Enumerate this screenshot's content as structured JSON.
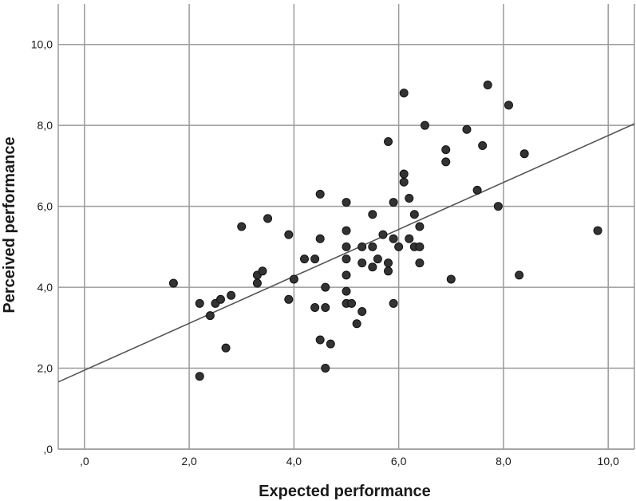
{
  "chart_data": {
    "type": "scatter",
    "title": "",
    "xlabel": "Expected performance",
    "ylabel": "Perceived performance",
    "xlim": [
      -0.5,
      10.5
    ],
    "ylim": [
      0,
      11
    ],
    "x_ticks": [
      ",0",
      "2,0",
      "4,0",
      "6,0",
      "8,0",
      "10,0"
    ],
    "y_ticks": [
      ",0",
      "2,0",
      "4,0",
      "6,0",
      "8,0",
      "10,0"
    ],
    "grid": true,
    "fit_line": {
      "intercept": 1.95,
      "slope": 0.58
    },
    "colors": {
      "marker": "#333333",
      "marker_edge": "#111111",
      "line": "#555555",
      "grid": "#9a9a9a"
    },
    "series": [
      {
        "points": [
          [
            1.7,
            4.1
          ],
          [
            2.2,
            3.6
          ],
          [
            2.2,
            1.8
          ],
          [
            2.4,
            3.3
          ],
          [
            2.5,
            3.6
          ],
          [
            2.6,
            3.7
          ],
          [
            2.7,
            2.5
          ],
          [
            2.8,
            3.8
          ],
          [
            3.0,
            5.5
          ],
          [
            3.3,
            4.3
          ],
          [
            3.3,
            4.1
          ],
          [
            3.4,
            4.4
          ],
          [
            3.5,
            5.7
          ],
          [
            3.9,
            5.3
          ],
          [
            3.9,
            3.7
          ],
          [
            4.0,
            4.2
          ],
          [
            4.2,
            4.7
          ],
          [
            4.4,
            4.7
          ],
          [
            4.4,
            3.5
          ],
          [
            4.5,
            6.3
          ],
          [
            4.5,
            5.2
          ],
          [
            4.5,
            2.7
          ],
          [
            4.6,
            4.0
          ],
          [
            4.6,
            3.5
          ],
          [
            4.6,
            2.0
          ],
          [
            4.7,
            2.6
          ],
          [
            5.0,
            6.1
          ],
          [
            5.0,
            5.4
          ],
          [
            5.0,
            5.0
          ],
          [
            5.0,
            4.7
          ],
          [
            5.0,
            4.3
          ],
          [
            5.0,
            3.9
          ],
          [
            5.0,
            3.6
          ],
          [
            5.1,
            3.6
          ],
          [
            5.2,
            3.1
          ],
          [
            5.3,
            5.0
          ],
          [
            5.3,
            4.6
          ],
          [
            5.3,
            3.4
          ],
          [
            5.5,
            5.8
          ],
          [
            5.5,
            5.0
          ],
          [
            5.5,
            4.5
          ],
          [
            5.6,
            4.7
          ],
          [
            5.7,
            5.3
          ],
          [
            5.8,
            7.6
          ],
          [
            5.8,
            4.6
          ],
          [
            5.8,
            4.4
          ],
          [
            5.9,
            6.1
          ],
          [
            5.9,
            5.2
          ],
          [
            5.9,
            3.6
          ],
          [
            6.0,
            5.0
          ],
          [
            6.1,
            8.8
          ],
          [
            6.1,
            6.8
          ],
          [
            6.1,
            6.6
          ],
          [
            6.2,
            6.2
          ],
          [
            6.2,
            5.2
          ],
          [
            6.3,
            5.8
          ],
          [
            6.3,
            5.0
          ],
          [
            6.4,
            5.5
          ],
          [
            6.4,
            5.0
          ],
          [
            6.4,
            4.6
          ],
          [
            6.5,
            8.0
          ],
          [
            6.9,
            7.4
          ],
          [
            6.9,
            7.1
          ],
          [
            7.0,
            4.2
          ],
          [
            7.3,
            7.9
          ],
          [
            7.5,
            6.4
          ],
          [
            7.6,
            7.5
          ],
          [
            7.7,
            9.0
          ],
          [
            7.9,
            6.0
          ],
          [
            8.1,
            8.5
          ],
          [
            8.3,
            4.3
          ],
          [
            8.4,
            7.3
          ],
          [
            9.8,
            5.4
          ]
        ]
      }
    ]
  }
}
